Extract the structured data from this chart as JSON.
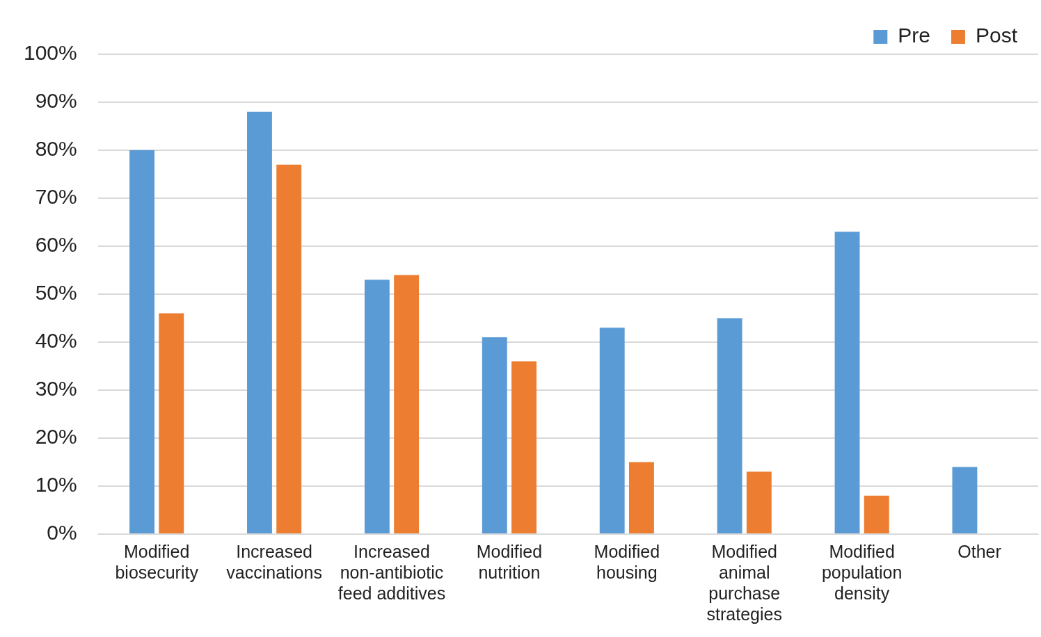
{
  "chart_data": {
    "type": "bar",
    "categories": [
      "Modified biosecurity",
      "Increased vaccinations",
      "Increased non-antibiotic feed additives",
      "Modified nutrition",
      "Modified housing",
      "Modified animal purchase strategies",
      "Modified population density",
      "Other"
    ],
    "series": [
      {
        "name": "Pre",
        "color": "#5b9bd5",
        "values": [
          0.8,
          0.88,
          0.53,
          0.41,
          0.43,
          0.45,
          0.63,
          0.14
        ]
      },
      {
        "name": "Post",
        "color": "#ed7d31",
        "values": [
          0.46,
          0.77,
          0.54,
          0.36,
          0.15,
          0.13,
          0.08,
          null
        ]
      }
    ],
    "ylim": [
      0,
      1
    ],
    "yticks": [
      {
        "value": 0,
        "label": "0%"
      },
      {
        "value": 0.1,
        "label": "10%"
      },
      {
        "value": 0.2,
        "label": "20%"
      },
      {
        "value": 0.3,
        "label": "30%"
      },
      {
        "value": 0.4,
        "label": "40%"
      },
      {
        "value": 0.5,
        "label": "50%"
      },
      {
        "value": 0.6,
        "label": "60%"
      },
      {
        "value": 0.7,
        "label": "70%"
      },
      {
        "value": 0.8,
        "label": "80%"
      },
      {
        "value": 0.9,
        "label": "90%"
      },
      {
        "value": 1,
        "label": "100%"
      }
    ],
    "grid": "y",
    "legend": "top right"
  }
}
